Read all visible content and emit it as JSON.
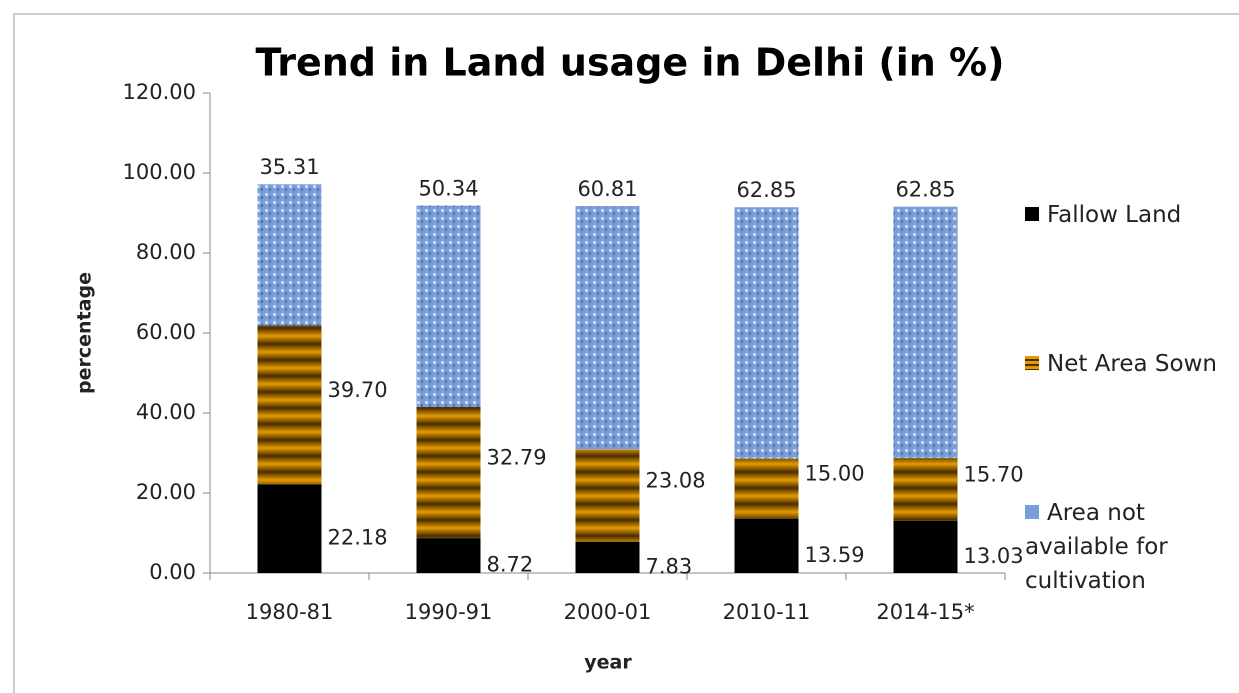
{
  "chart_data": {
    "type": "stacked_bar",
    "title": "Trend in Land usage in Delhi (in %)",
    "x_label": "year",
    "y_label": "percentage",
    "categories": [
      "1980-81",
      "1990-91",
      "2000-01",
      "2010-11",
      "2014-15*"
    ],
    "series": [
      {
        "name": "Fallow Land",
        "color": "#000000",
        "values": [
          22.18,
          8.72,
          7.83,
          13.59,
          13.03
        ],
        "value_labels": [
          "22.18",
          "8.72",
          "7.83",
          "13.59",
          "13.03"
        ]
      },
      {
        "name": "Net Area Sown",
        "color": "#e69a00",
        "values": [
          39.7,
          32.79,
          23.08,
          15.0,
          15.7
        ],
        "value_labels": [
          "39.70",
          "32.79",
          "23.08",
          "15.00",
          "15.70"
        ]
      },
      {
        "name": "Area not available for cultivation",
        "color": "#7a9fd8",
        "values": [
          35.31,
          50.34,
          60.81,
          62.85,
          62.85
        ],
        "value_labels": [
          "35.31",
          "50.34",
          "60.81",
          "62.85",
          "62.85"
        ]
      }
    ],
    "ylim": [
      0,
      120
    ],
    "yticks": [
      {
        "value": 0,
        "label": "0.00"
      },
      {
        "value": 20,
        "label": "20.00"
      },
      {
        "value": 40,
        "label": "40.00"
      },
      {
        "value": 60,
        "label": "60.00"
      },
      {
        "value": 80,
        "label": "80.00"
      },
      {
        "value": 100,
        "label": "100.00"
      },
      {
        "value": 120,
        "label": "120.00"
      }
    ],
    "legend": "right"
  }
}
